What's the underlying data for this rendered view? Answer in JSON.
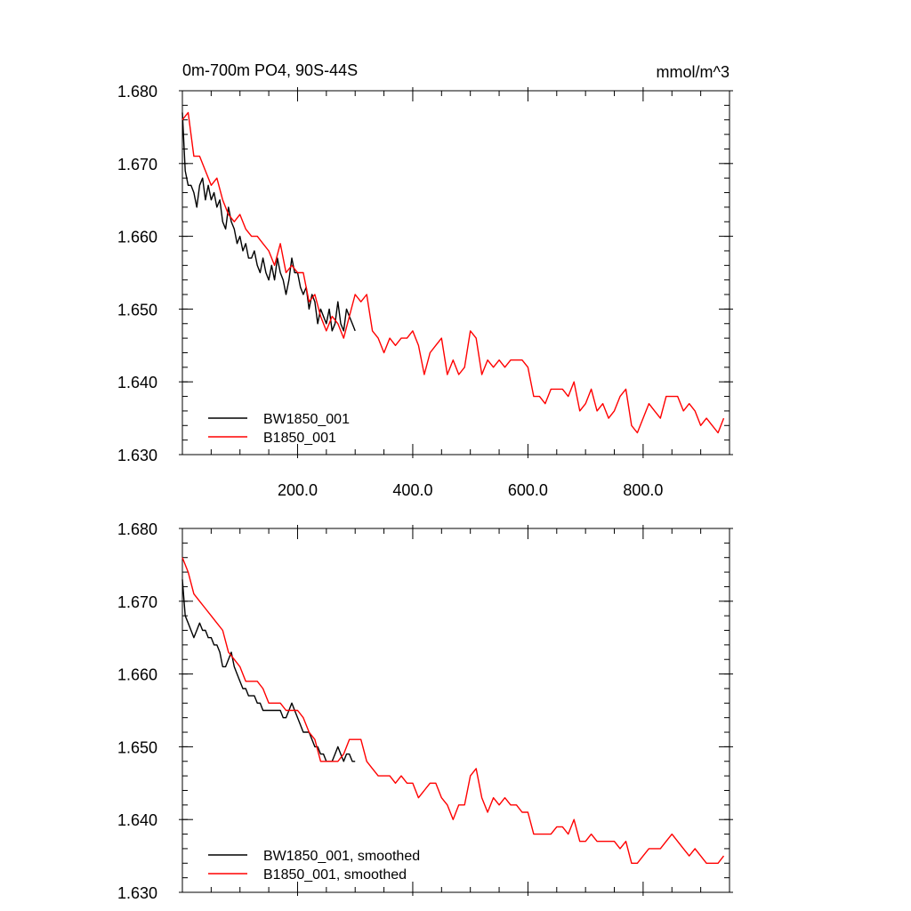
{
  "colors": {
    "black_series": "#000000",
    "red_series": "#ff0000"
  },
  "chart_data": [
    {
      "type": "line",
      "title": "0m-700m PO4, 90S-44S",
      "units": "mmol/m^3",
      "xlabel": "",
      "ylabel": "",
      "xlim": [
        0,
        950
      ],
      "ylim": [
        1.63,
        1.68
      ],
      "xticks": [
        200,
        400,
        600,
        800
      ],
      "xtick_labels": [
        "200.0",
        "400.0",
        "600.0",
        "800.0"
      ],
      "yticks": [
        1.63,
        1.64,
        1.65,
        1.66,
        1.67,
        1.68
      ],
      "ytick_labels": [
        "1.630",
        "1.640",
        "1.650",
        "1.660",
        "1.670",
        "1.680"
      ],
      "grid": false,
      "legend": "bottom-left",
      "series": [
        {
          "name": "BW1850_001",
          "color": "#000000",
          "x": [
            0,
            5,
            10,
            15,
            20,
            25,
            30,
            35,
            40,
            45,
            50,
            55,
            60,
            65,
            70,
            75,
            80,
            85,
            90,
            95,
            100,
            105,
            110,
            115,
            120,
            125,
            130,
            135,
            140,
            145,
            150,
            155,
            160,
            165,
            170,
            175,
            180,
            185,
            190,
            195,
            200,
            205,
            210,
            215,
            220,
            225,
            230,
            235,
            240,
            245,
            250,
            255,
            260,
            265,
            270,
            275,
            280,
            285,
            290,
            295,
            300
          ],
          "y": [
            1.677,
            1.669,
            1.667,
            1.667,
            1.666,
            1.664,
            1.667,
            1.668,
            1.665,
            1.667,
            1.665,
            1.666,
            1.664,
            1.665,
            1.662,
            1.661,
            1.664,
            1.662,
            1.661,
            1.659,
            1.66,
            1.658,
            1.659,
            1.657,
            1.657,
            1.658,
            1.656,
            1.655,
            1.657,
            1.655,
            1.654,
            1.656,
            1.654,
            1.657,
            1.655,
            1.654,
            1.652,
            1.654,
            1.657,
            1.655,
            1.655,
            1.653,
            1.652,
            1.653,
            1.65,
            1.652,
            1.651,
            1.648,
            1.65,
            1.649,
            1.648,
            1.65,
            1.647,
            1.648,
            1.651,
            1.648,
            1.647,
            1.65,
            1.649,
            1.648,
            1.647
          ]
        },
        {
          "name": "B1850_001",
          "color": "#ff0000",
          "x": [
            0,
            10,
            20,
            30,
            40,
            50,
            60,
            70,
            80,
            90,
            100,
            110,
            120,
            130,
            140,
            150,
            160,
            170,
            180,
            190,
            200,
            210,
            220,
            230,
            240,
            250,
            260,
            270,
            280,
            290,
            300,
            310,
            320,
            330,
            340,
            350,
            360,
            370,
            380,
            390,
            400,
            410,
            420,
            430,
            440,
            450,
            460,
            470,
            480,
            490,
            500,
            510,
            520,
            530,
            540,
            550,
            560,
            570,
            580,
            590,
            600,
            610,
            620,
            630,
            640,
            650,
            660,
            670,
            680,
            690,
            700,
            710,
            720,
            730,
            740,
            750,
            760,
            770,
            780,
            790,
            800,
            810,
            820,
            830,
            840,
            850,
            860,
            870,
            880,
            890,
            900,
            910,
            920,
            930,
            940
          ],
          "y": [
            1.676,
            1.677,
            1.671,
            1.671,
            1.669,
            1.667,
            1.668,
            1.665,
            1.663,
            1.662,
            1.663,
            1.661,
            1.66,
            1.66,
            1.659,
            1.658,
            1.656,
            1.659,
            1.655,
            1.656,
            1.655,
            1.655,
            1.651,
            1.652,
            1.649,
            1.647,
            1.649,
            1.648,
            1.646,
            1.649,
            1.652,
            1.651,
            1.652,
            1.647,
            1.646,
            1.644,
            1.646,
            1.645,
            1.646,
            1.646,
            1.647,
            1.645,
            1.641,
            1.644,
            1.645,
            1.646,
            1.641,
            1.643,
            1.641,
            1.642,
            1.647,
            1.646,
            1.641,
            1.643,
            1.642,
            1.643,
            1.642,
            1.643,
            1.643,
            1.643,
            1.642,
            1.638,
            1.638,
            1.637,
            1.639,
            1.639,
            1.639,
            1.638,
            1.64,
            1.636,
            1.637,
            1.639,
            1.636,
            1.637,
            1.635,
            1.636,
            1.638,
            1.639,
            1.634,
            1.633,
            1.635,
            1.637,
            1.636,
            1.635,
            1.638,
            1.638,
            1.638,
            1.636,
            1.637,
            1.636,
            1.634,
            1.635,
            1.634,
            1.633,
            1.635
          ]
        }
      ]
    },
    {
      "type": "line",
      "title": "",
      "xlabel": "",
      "ylabel": "",
      "xlim": [
        0,
        950
      ],
      "ylim": [
        1.63,
        1.68
      ],
      "xticks": [
        200,
        400,
        600,
        800
      ],
      "yticks": [
        1.63,
        1.64,
        1.65,
        1.66,
        1.67,
        1.68
      ],
      "ytick_labels": [
        "1.630",
        "1.640",
        "1.650",
        "1.660",
        "1.670",
        "1.680"
      ],
      "grid": false,
      "legend": "bottom-left",
      "series": [
        {
          "name": "BW1850_001, smoothed",
          "color": "#000000",
          "x": [
            0,
            5,
            10,
            15,
            20,
            25,
            30,
            35,
            40,
            45,
            50,
            55,
            60,
            65,
            70,
            75,
            80,
            85,
            90,
            95,
            100,
            105,
            110,
            115,
            120,
            125,
            130,
            135,
            140,
            145,
            150,
            155,
            160,
            165,
            170,
            175,
            180,
            185,
            190,
            195,
            200,
            205,
            210,
            215,
            220,
            225,
            230,
            235,
            240,
            245,
            250,
            255,
            260,
            265,
            270,
            275,
            280,
            285,
            290,
            295,
            300
          ],
          "y": [
            1.673,
            1.668,
            1.667,
            1.666,
            1.665,
            1.666,
            1.667,
            1.666,
            1.666,
            1.665,
            1.665,
            1.664,
            1.664,
            1.663,
            1.661,
            1.661,
            1.662,
            1.663,
            1.661,
            1.66,
            1.659,
            1.658,
            1.658,
            1.657,
            1.657,
            1.657,
            1.656,
            1.656,
            1.655,
            1.655,
            1.655,
            1.655,
            1.655,
            1.655,
            1.655,
            1.654,
            1.654,
            1.655,
            1.656,
            1.655,
            1.654,
            1.653,
            1.652,
            1.652,
            1.652,
            1.651,
            1.65,
            1.65,
            1.649,
            1.649,
            1.648,
            1.648,
            1.648,
            1.649,
            1.65,
            1.649,
            1.648,
            1.649,
            1.649,
            1.648,
            1.648
          ]
        },
        {
          "name": "B1850_001, smoothed",
          "color": "#ff0000",
          "x": [
            0,
            10,
            20,
            30,
            40,
            50,
            60,
            70,
            80,
            90,
            100,
            110,
            120,
            130,
            140,
            150,
            160,
            170,
            180,
            190,
            200,
            210,
            220,
            230,
            240,
            250,
            260,
            270,
            280,
            290,
            300,
            310,
            320,
            330,
            340,
            350,
            360,
            370,
            380,
            390,
            400,
            410,
            420,
            430,
            440,
            450,
            460,
            470,
            480,
            490,
            500,
            510,
            520,
            530,
            540,
            550,
            560,
            570,
            580,
            590,
            600,
            610,
            620,
            630,
            640,
            650,
            660,
            670,
            680,
            690,
            700,
            710,
            720,
            730,
            740,
            750,
            760,
            770,
            780,
            790,
            800,
            810,
            820,
            830,
            840,
            850,
            860,
            870,
            880,
            890,
            900,
            910,
            920,
            930,
            940
          ],
          "y": [
            1.676,
            1.674,
            1.671,
            1.67,
            1.669,
            1.668,
            1.667,
            1.666,
            1.663,
            1.662,
            1.661,
            1.659,
            1.659,
            1.659,
            1.658,
            1.656,
            1.656,
            1.656,
            1.655,
            1.655,
            1.655,
            1.654,
            1.652,
            1.651,
            1.648,
            1.648,
            1.648,
            1.648,
            1.649,
            1.651,
            1.651,
            1.651,
            1.648,
            1.647,
            1.646,
            1.646,
            1.646,
            1.645,
            1.646,
            1.645,
            1.645,
            1.643,
            1.644,
            1.645,
            1.645,
            1.643,
            1.642,
            1.64,
            1.642,
            1.642,
            1.646,
            1.647,
            1.643,
            1.641,
            1.643,
            1.642,
            1.643,
            1.642,
            1.642,
            1.641,
            1.641,
            1.638,
            1.638,
            1.638,
            1.638,
            1.639,
            1.639,
            1.638,
            1.64,
            1.637,
            1.637,
            1.638,
            1.637,
            1.637,
            1.637,
            1.637,
            1.636,
            1.637,
            1.634,
            1.634,
            1.635,
            1.636,
            1.636,
            1.636,
            1.637,
            1.638,
            1.637,
            1.636,
            1.635,
            1.636,
            1.635,
            1.634,
            1.634,
            1.634,
            1.635
          ]
        }
      ]
    }
  ]
}
